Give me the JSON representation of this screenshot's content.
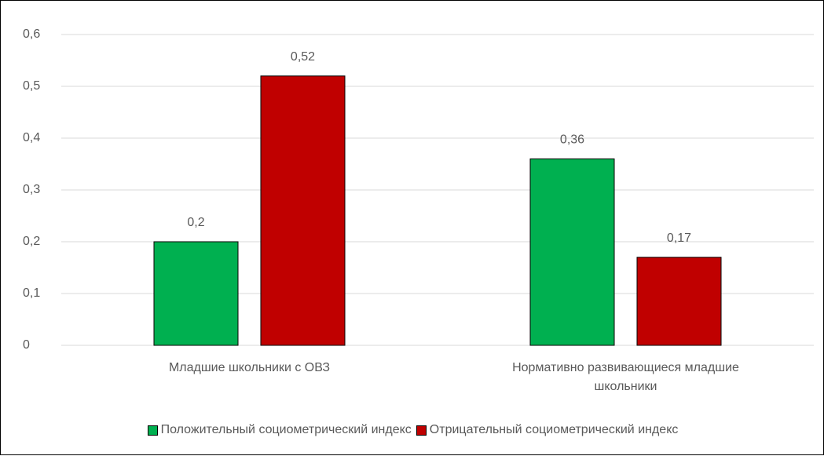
{
  "chart_data": {
    "type": "bar",
    "categories": [
      "Младшие школьники с ОВЗ",
      "Нормативно развивающиеся младшие школьники"
    ],
    "series": [
      {
        "name": "Положительный социометрический индекс",
        "color": "#00b050",
        "values": [
          0.2,
          0.36
        ],
        "value_labels": [
          "0,2",
          "0,36"
        ]
      },
      {
        "name": "Отрицательный социометрический индекс",
        "color": "#c00000",
        "values": [
          0.52,
          0.17
        ],
        "value_labels": [
          "0,52",
          "0,17"
        ]
      }
    ],
    "ylim": [
      0,
      0.6
    ],
    "yticks": [
      0,
      {
        "value": 0.1,
        "label": "0,1"
      },
      {
        "value": 0.2,
        "label": "0,2"
      },
      {
        "value": 0.3,
        "label": "0,3"
      },
      {
        "value": 0.4,
        "label": "0,4"
      },
      {
        "value": 0.5,
        "label": "0,5"
      },
      {
        "value": 0.6,
        "label": "0,6"
      }
    ],
    "grid": true,
    "legend": "bottom"
  }
}
